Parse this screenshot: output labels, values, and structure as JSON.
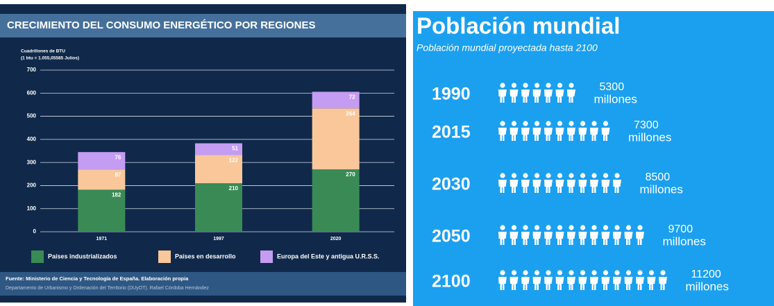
{
  "chart_data": [
    {
      "type": "stacked_bar",
      "title": "CRECIMIENTO DEL CONSUMO ENERGÉTICO POR REGIONES",
      "y_label": [
        "Cuadrillones de BTU",
        "(1 btu = 1.055,05585 Julios)"
      ],
      "categories": [
        "1971",
        "1997",
        "2020"
      ],
      "series": [
        {
          "name": "Países industrializados",
          "color": "#3a8a56",
          "values": [
            182,
            210,
            270
          ]
        },
        {
          "name": "Países en desarrollo",
          "color": "#f9c79a",
          "values": [
            87,
            122,
            264
          ]
        },
        {
          "name": "Europa del Este y antigua U.R.S.S.",
          "color": "#c49cf2",
          "values": [
            76,
            51,
            72
          ]
        }
      ],
      "ylim": [
        0,
        700
      ],
      "yticks": [
        0,
        100,
        200,
        300,
        400,
        500,
        600,
        700
      ],
      "grid": true,
      "source": [
        "Fuente: Ministerio de Ciencia y Tecnología de España. Elaboración propia",
        "Departamento de Urbanismo y Ordenación del Territorio (DUyOT). Rafael Córdoba Hernández"
      ]
    },
    {
      "type": "pictogram",
      "title": "Población mundial",
      "subtitle": "Población mundial proyectada hasta 2100",
      "categories": [
        "1990",
        "2015",
        "2030",
        "2050",
        "2100"
      ],
      "values": [
        5300,
        7300,
        8500,
        9700,
        11200
      ],
      "value_unit": "millones",
      "color": "#ffffff"
    }
  ]
}
